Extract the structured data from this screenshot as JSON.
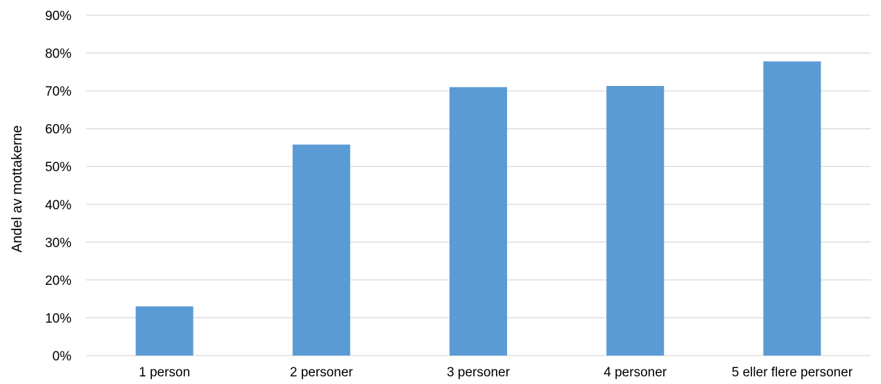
{
  "chart_data": {
    "type": "bar",
    "title": "",
    "xlabel": "",
    "ylabel": "Andel av mottakerne",
    "categories": [
      "1 person",
      "2 personer",
      "3 personer",
      "4 personer",
      "5 eller flere personer"
    ],
    "values": [
      13,
      55.8,
      71,
      71.3,
      77.8
    ],
    "ylim": [
      0,
      90
    ],
    "ytick_step": 10,
    "ytick_labels": [
      "0%",
      "10%",
      "20%",
      "30%",
      "40%",
      "50%",
      "60%",
      "70%",
      "80%",
      "90%"
    ],
    "grid": true,
    "legend": "none",
    "bar_color": "#5b9bd5",
    "grid_color": "#d9d9d9"
  }
}
